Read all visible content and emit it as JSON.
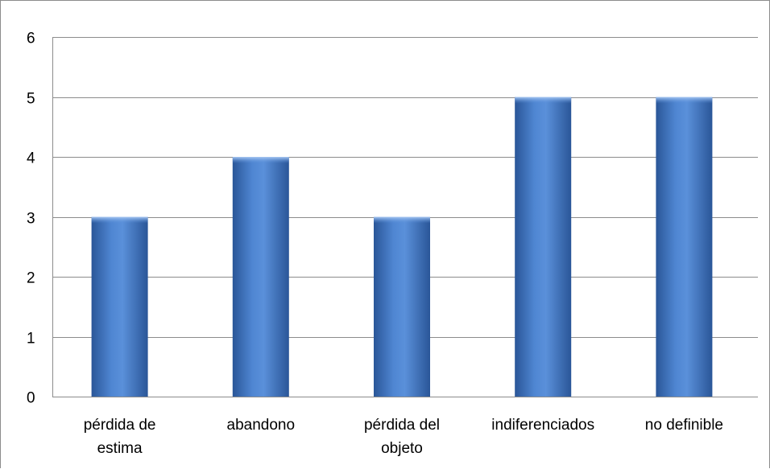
{
  "chart_data": {
    "type": "bar",
    "title": "",
    "xlabel": "",
    "ylabel": "",
    "categories": [
      [
        "pérdida de",
        "estima"
      ],
      [
        "abandono"
      ],
      [
        "pérdida del",
        "objeto"
      ],
      [
        "indiferenciados"
      ],
      [
        "no definible"
      ]
    ],
    "values": [
      3,
      4,
      3,
      5,
      5
    ],
    "ylim": [
      0,
      6
    ],
    "yticks": [
      "0",
      "1",
      "2",
      "3",
      "4",
      "5",
      "6"
    ],
    "grid": true,
    "legend": "none",
    "colors": {
      "bar_edge": "#2f5ea8",
      "bar_center": "#5b8fd8",
      "bar_top": "#8fb6ee",
      "grid": "#8c8c8c"
    }
  }
}
